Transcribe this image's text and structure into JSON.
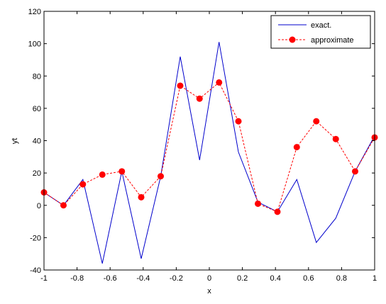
{
  "chart_data": {
    "type": "line",
    "xlabel": "x",
    "ylabel": "yt",
    "xlim": [
      -1,
      1
    ],
    "ylim": [
      -40,
      120
    ],
    "xticks": [
      "-1",
      "-0.8",
      "-0.6",
      "-0.4",
      "-0.2",
      "0",
      "0.2",
      "0.4",
      "0.6",
      "0.8",
      "1"
    ],
    "yticks": [
      "-40",
      "-20",
      "0",
      "20",
      "40",
      "60",
      "80",
      "100",
      "120"
    ],
    "grid": false,
    "legend_position": "top-right",
    "series": [
      {
        "name": "exact.",
        "color": "#0000cc",
        "line_style": "solid",
        "marker": "none",
        "x": [
          -1,
          -0.882,
          -0.765,
          -0.647,
          -0.529,
          -0.412,
          -0.294,
          -0.176,
          -0.059,
          0.059,
          0.176,
          0.294,
          0.412,
          0.529,
          0.647,
          0.765,
          0.882,
          1
        ],
        "y": [
          8,
          0,
          16,
          -36,
          21,
          -33,
          18,
          92,
          28,
          101,
          33,
          2,
          -4,
          16,
          -23,
          -8,
          21,
          43
        ]
      },
      {
        "name": "approximate",
        "color": "#ff0000",
        "line_style": "dashed",
        "marker": "circle",
        "x": [
          -1,
          -0.882,
          -0.765,
          -0.647,
          -0.529,
          -0.412,
          -0.294,
          -0.176,
          -0.059,
          0.059,
          0.176,
          0.294,
          0.412,
          0.529,
          0.647,
          0.765,
          0.882,
          1
        ],
        "y": [
          8,
          0,
          13,
          19,
          21,
          5,
          18,
          74,
          66,
          76,
          52,
          1,
          -4,
          36,
          52,
          41,
          21,
          42
        ]
      }
    ]
  }
}
